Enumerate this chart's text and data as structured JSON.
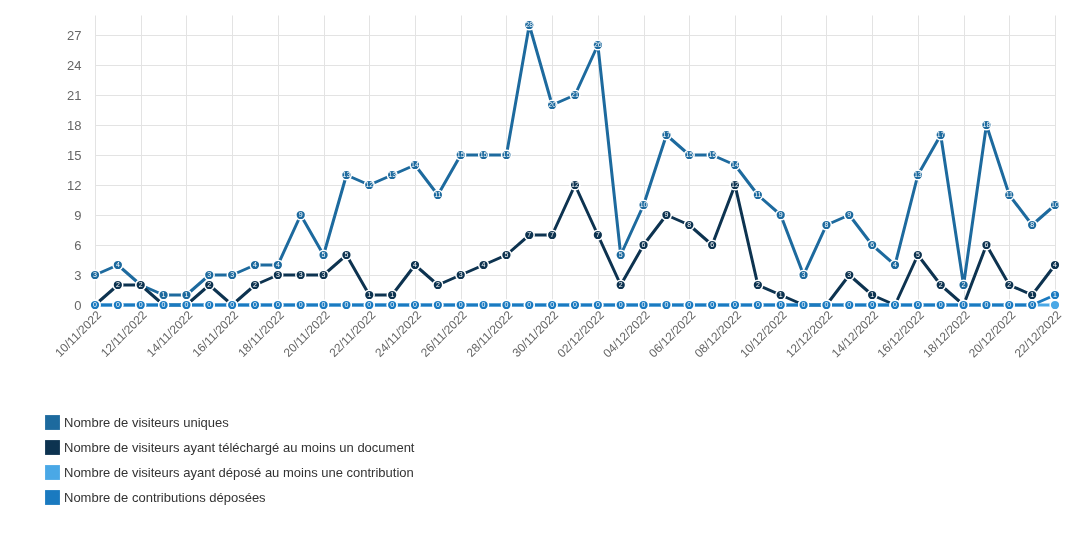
{
  "chart_data": {
    "type": "line",
    "categories": [
      "10/11/2022",
      null,
      "12/11/2022",
      null,
      "14/11/2022",
      null,
      "16/11/2022",
      null,
      "18/11/2022",
      null,
      "20/11/2022",
      null,
      "22/11/2022",
      null,
      "24/11/2022",
      null,
      "26/11/2022",
      null,
      "28/11/2022",
      null,
      "30/11/2022",
      null,
      "02/12/2022",
      null,
      "04/12/2022",
      null,
      "06/12/2022",
      null,
      "08/12/2022",
      null,
      "10/12/2022",
      null,
      "12/12/2022",
      null,
      "14/12/2022",
      null,
      "16/12/2022",
      null,
      "18/12/2022",
      null,
      "20/12/2022",
      null,
      "22/12/2022"
    ],
    "series": [
      {
        "name": "Nombre de visiteurs uniques",
        "color": "#1d6a9e",
        "values": [
          3,
          4,
          2,
          1,
          1,
          3,
          3,
          4,
          4,
          9,
          5,
          13,
          12,
          13,
          14,
          11,
          15,
          15,
          15,
          28,
          20,
          21,
          26,
          5,
          10,
          17,
          15,
          15,
          14,
          11,
          9,
          3,
          8,
          9,
          6,
          4,
          13,
          17,
          2,
          18,
          11,
          8,
          10
        ],
        "value_labels": [
          "3",
          "4",
          "2",
          "1",
          "1",
          "3",
          "3",
          "4",
          "4",
          "9",
          "5",
          "13",
          "12",
          "13",
          "14",
          "11",
          "15",
          "15",
          "15",
          "28",
          "20",
          "21",
          "26",
          "5",
          "10",
          "17",
          "15",
          "15",
          "14",
          "11",
          "9",
          "3",
          "8",
          "9",
          "6",
          "4",
          "13",
          "17",
          "2",
          "18",
          "11",
          "8",
          "10"
        ]
      },
      {
        "name": "Nombre de visiteurs ayant téléchargé au moins un document",
        "color": "#0d3350",
        "values": [
          0,
          2,
          2,
          0,
          0,
          2,
          0,
          2,
          3,
          3,
          3,
          5,
          1,
          1,
          4,
          2,
          3,
          4,
          5,
          7,
          7,
          12,
          7,
          2,
          6,
          9,
          8,
          6,
          12,
          2,
          1,
          0,
          0,
          3,
          1,
          0,
          5,
          2,
          0,
          6,
          2,
          1,
          4
        ],
        "value_labels": [
          null,
          "2",
          null,
          null,
          null,
          "2",
          null,
          "2",
          "3",
          "3",
          "3",
          "5",
          "1",
          "1",
          "4",
          "2",
          "3",
          "4",
          "5",
          "7",
          "7",
          "12",
          "7",
          "2",
          "6",
          "9",
          "8",
          "6",
          "12",
          "2",
          "1",
          null,
          null,
          "3",
          "1",
          null,
          "5",
          "2",
          null,
          "6",
          "2",
          "1",
          "4"
        ]
      },
      {
        "name": "Nombre de visiteurs ayant déposé au moins une contribution",
        "color": "#4aa8e6",
        "values": [
          0,
          0,
          0,
          0,
          0,
          0,
          0,
          0,
          0,
          0,
          0,
          0,
          0,
          0,
          0,
          0,
          0,
          0,
          0,
          0,
          0,
          0,
          0,
          0,
          0,
          0,
          0,
          0,
          0,
          0,
          0,
          0,
          0,
          0,
          0,
          0,
          0,
          0,
          0,
          0,
          0,
          0,
          0
        ]
      },
      {
        "name": "Nombre de contributions déposées",
        "color": "#1a7ac0",
        "values": [
          0,
          0,
          0,
          0,
          0,
          0,
          0,
          0,
          0,
          0,
          0,
          0,
          0,
          0,
          0,
          0,
          0,
          0,
          0,
          0,
          0,
          0,
          0,
          0,
          0,
          0,
          0,
          0,
          0,
          0,
          0,
          0,
          0,
          0,
          0,
          0,
          0,
          0,
          0,
          0,
          0,
          0,
          1
        ],
        "value_labels": [
          "0",
          "0",
          "0",
          "0",
          "0",
          "0",
          "0",
          "0",
          "0",
          "0",
          "0",
          "0",
          "0",
          "0",
          "0",
          "0",
          "0",
          "0",
          "0",
          "0",
          "0",
          "0",
          "0",
          "0",
          "0",
          "0",
          "0",
          "0",
          "0",
          "0",
          "0",
          "0",
          "0",
          "0",
          "0",
          "0",
          "0",
          "0",
          "0",
          "0",
          "0",
          "0",
          "1"
        ]
      }
    ],
    "ylim": [
      0,
      29
    ],
    "yticks": [
      0,
      3,
      6,
      9,
      12,
      15,
      18,
      21,
      24,
      27
    ],
    "grid": true,
    "legend": "bottom",
    "marker": "circle",
    "line_style": "solid"
  }
}
